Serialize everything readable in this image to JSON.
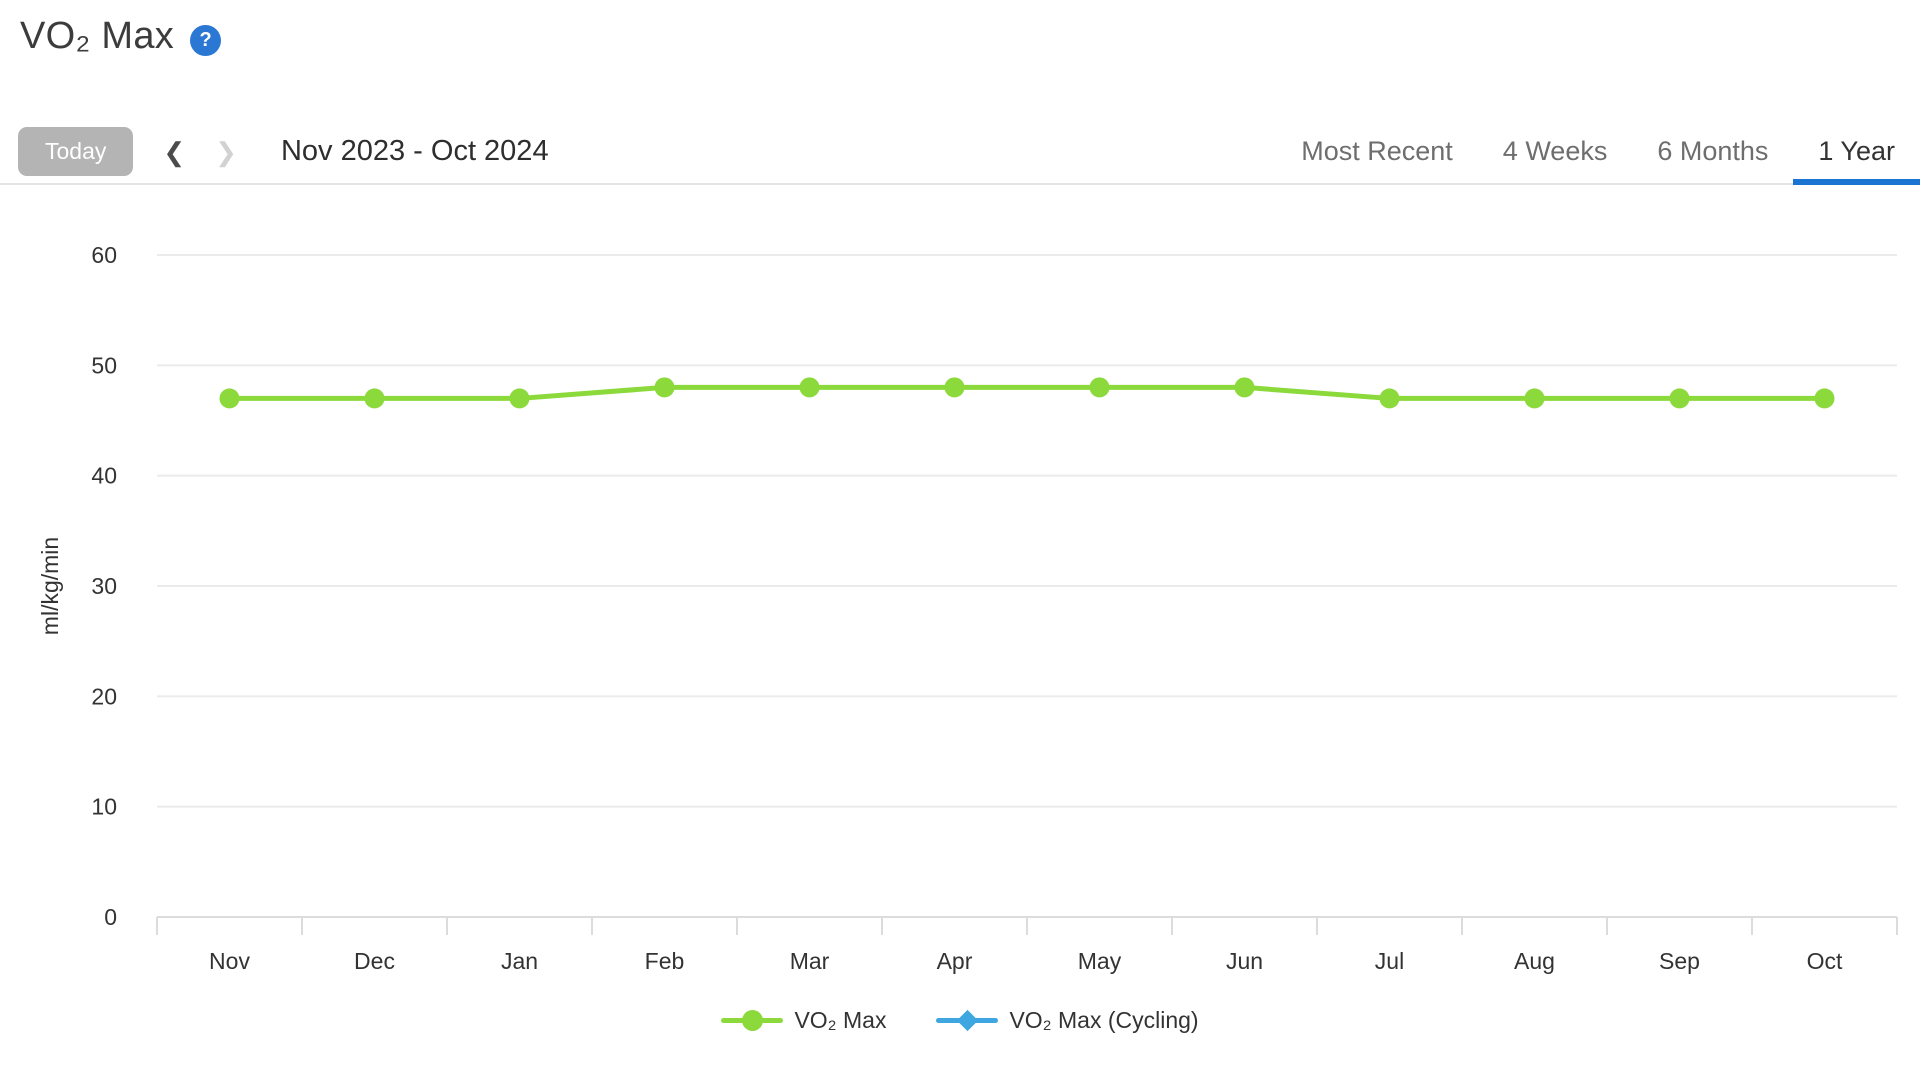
{
  "page": {
    "title": "VO₂ Max",
    "help_icon": "?"
  },
  "toolbar": {
    "today_label": "Today",
    "prev_icon": "❮",
    "next_icon": "❯",
    "date_range": "Nov 2023 - Oct 2024",
    "tabs": [
      {
        "label": "Most Recent",
        "active": false
      },
      {
        "label": "4 Weeks",
        "active": false
      },
      {
        "label": "6 Months",
        "active": false
      },
      {
        "label": "1 Year",
        "active": true
      }
    ]
  },
  "chart_data": {
    "type": "line",
    "title": "VO₂ Max",
    "xlabel": "",
    "ylabel": "ml/kg/min",
    "categories": [
      "Nov",
      "Dec",
      "Jan",
      "Feb",
      "Mar",
      "Apr",
      "May",
      "Jun",
      "Jul",
      "Aug",
      "Sep",
      "Oct"
    ],
    "yticks": [
      0,
      10,
      20,
      30,
      40,
      50,
      60
    ],
    "ylim": [
      0,
      64
    ],
    "grid": "horizontal",
    "legend_position": "bottom",
    "series": [
      {
        "name": "VO₂ Max",
        "color": "#8cd93c",
        "marker": "circle",
        "values": [
          47,
          47,
          47,
          48,
          48,
          48,
          48,
          48,
          47,
          47,
          47,
          47
        ]
      },
      {
        "name": "VO₂ Max (Cycling)",
        "color": "#3ea6e0",
        "marker": "diamond",
        "values": []
      }
    ]
  },
  "colors": {
    "accent_blue": "#1c74d2",
    "help_blue": "#2a77d4",
    "line_green": "#8cd93c",
    "cycling_blue": "#3ea6e0"
  }
}
